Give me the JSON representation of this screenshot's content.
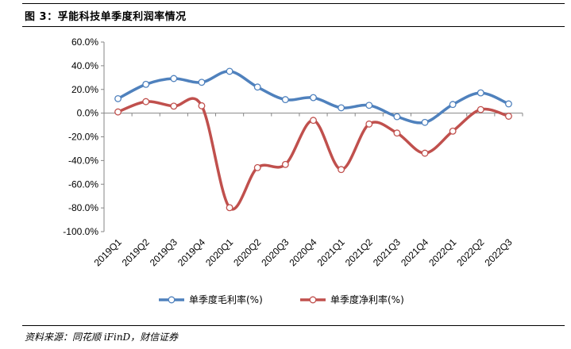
{
  "figure": {
    "title": "图 3：孚能科技单季度利润率情况",
    "source": "资料来源：同花顺 iFinD，财信证券"
  },
  "chart_data": {
    "type": "line",
    "title": "",
    "xlabel": "",
    "ylabel": "",
    "categories": [
      "2019Q1",
      "2019Q2",
      "2019Q3",
      "2019Q4",
      "2020Q1",
      "2020Q2",
      "2020Q3",
      "2020Q4",
      "2021Q1",
      "2021Q2",
      "2021Q3",
      "2021Q4",
      "2022Q1",
      "2022Q2",
      "2022Q3"
    ],
    "ylim": [
      -100,
      60
    ],
    "yticks": [
      60,
      40,
      20,
      0,
      -20,
      -40,
      -60,
      -80,
      -100
    ],
    "ytick_labels": [
      "60.0%",
      "40.0%",
      "20.0%",
      "0.0%",
      "-20.0%",
      "-40.0%",
      "-60.0%",
      "-80.0%",
      "-100.0%"
    ],
    "grid": false,
    "legend_position": "bottom",
    "smooth": true,
    "series": [
      {
        "name": "单季度毛利率(%)",
        "color": "#4F81BD",
        "values": [
          12.2,
          24.3,
          29.2,
          26.0,
          35.3,
          22.0,
          11.4,
          13.1,
          4.5,
          6.6,
          -3.0,
          -7.8,
          7.3,
          17.1,
          7.8
        ]
      },
      {
        "name": "单季度净利率(%)",
        "color": "#C0504D",
        "values": [
          1.0,
          9.7,
          5.9,
          6.2,
          -79.8,
          -46.0,
          -43.3,
          -6.1,
          -47.6,
          -9.2,
          -16.8,
          -33.8,
          -15.2,
          3.0,
          -2.6
        ]
      }
    ]
  }
}
